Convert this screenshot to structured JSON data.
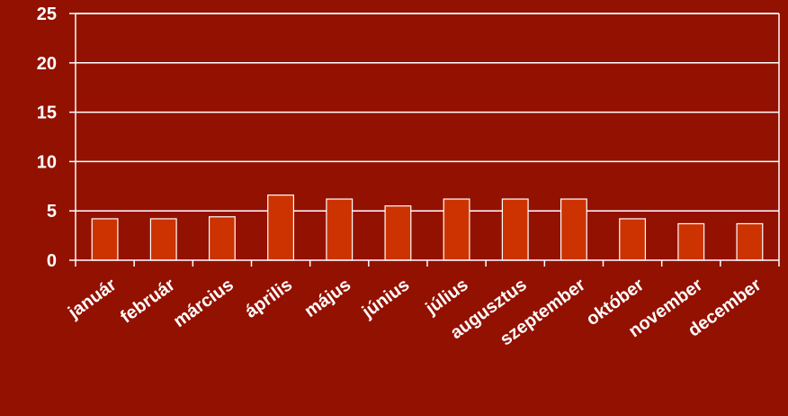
{
  "chart_data": {
    "type": "bar",
    "categories": [
      "január",
      "február",
      "március",
      "április",
      "május",
      "június",
      "július",
      "augusztus",
      "szeptember",
      "október",
      "november",
      "december"
    ],
    "values": [
      4.2,
      4.2,
      4.4,
      6.6,
      6.2,
      5.5,
      6.2,
      6.2,
      6.2,
      4.2,
      3.7,
      3.7
    ],
    "ylim": [
      0,
      25
    ],
    "yticks": [
      0,
      5,
      10,
      15,
      20,
      25
    ],
    "grid": true,
    "colors": {
      "background": "#931100",
      "bar_fill": "#cc3300",
      "bar_stroke": "#ffffff",
      "text": "#ffffff"
    }
  }
}
